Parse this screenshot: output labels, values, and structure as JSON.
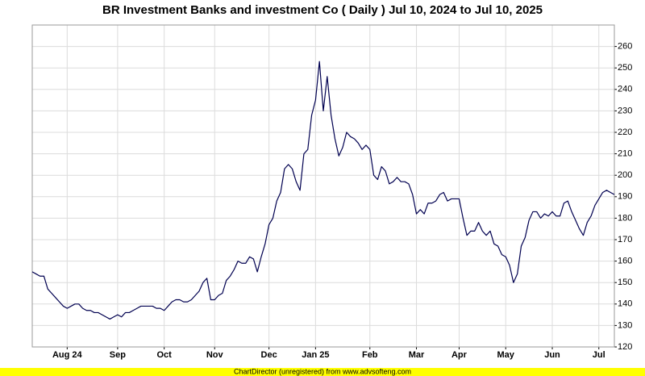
{
  "chart_data": {
    "type": "line",
    "title": "BR Investment Banks and investment Co ( Daily ) Jul 10, 2024 to Jul 10, 2025",
    "footer": "ChartDirector (unregistered) from www.advsofteng.com",
    "categories": [
      null,
      null,
      null,
      null,
      null,
      null,
      null,
      null,
      null,
      "Aug 24",
      null,
      null,
      null,
      null,
      null,
      null,
      null,
      null,
      null,
      null,
      null,
      null,
      "Sep",
      null,
      null,
      null,
      null,
      null,
      null,
      null,
      null,
      null,
      null,
      null,
      "Oct",
      null,
      null,
      null,
      null,
      null,
      null,
      null,
      null,
      null,
      null,
      null,
      null,
      "Nov",
      null,
      null,
      null,
      null,
      null,
      null,
      null,
      null,
      null,
      null,
      null,
      null,
      null,
      "Dec",
      null,
      null,
      null,
      null,
      null,
      null,
      null,
      null,
      null,
      null,
      null,
      "Jan 25",
      null,
      null,
      null,
      null,
      null,
      null,
      null,
      null,
      null,
      null,
      null,
      null,
      null,
      "Feb",
      null,
      null,
      null,
      null,
      null,
      null,
      null,
      null,
      null,
      null,
      null,
      "Mar",
      null,
      null,
      null,
      null,
      null,
      null,
      null,
      null,
      null,
      null,
      "Apr",
      null,
      null,
      null,
      null,
      null,
      null,
      null,
      null,
      null,
      null,
      null,
      "May",
      null,
      null,
      null,
      null,
      null,
      null,
      null,
      null,
      null,
      null,
      null,
      "Jun",
      null,
      null,
      null,
      null,
      null,
      null,
      null,
      null,
      null,
      null,
      null,
      "Jul",
      null,
      null,
      null,
      null
    ],
    "values": [
      155,
      154,
      153,
      153,
      147,
      145,
      143,
      141,
      139,
      138,
      139,
      140,
      140,
      138,
      137,
      137,
      136,
      136,
      135,
      134,
      133,
      134,
      135,
      134,
      136,
      136,
      137,
      138,
      139,
      139,
      139,
      139,
      138,
      138,
      137,
      139,
      141,
      142,
      142,
      141,
      141,
      142,
      144,
      146,
      150,
      152,
      142,
      142,
      144,
      145,
      151,
      153,
      156,
      160,
      159,
      159,
      162,
      161,
      155,
      162,
      168,
      177,
      180,
      188,
      192,
      203,
      205,
      203,
      197,
      193,
      210,
      212,
      228,
      235,
      253,
      230,
      246,
      228,
      217,
      209,
      213,
      220,
      218,
      217,
      215,
      212,
      214,
      212,
      200,
      198,
      204,
      202,
      196,
      197,
      199,
      197,
      197,
      196,
      191,
      182,
      184,
      182,
      187,
      187,
      188,
      191,
      192,
      188,
      189,
      189,
      189,
      180,
      172,
      174,
      174,
      178,
      174,
      172,
      174,
      168,
      167,
      163,
      162,
      158,
      150,
      154,
      167,
      171,
      179,
      183,
      183,
      180,
      182,
      181,
      183,
      181,
      181,
      187,
      188,
      183,
      179,
      175,
      172,
      178,
      181,
      186,
      189,
      192,
      193,
      192,
      191
    ],
    "color": "#000050",
    "ylim": [
      120,
      270
    ],
    "yticks": [
      120,
      130,
      140,
      150,
      160,
      170,
      180,
      190,
      200,
      210,
      220,
      230,
      240,
      250,
      260
    ],
    "grid": true
  }
}
